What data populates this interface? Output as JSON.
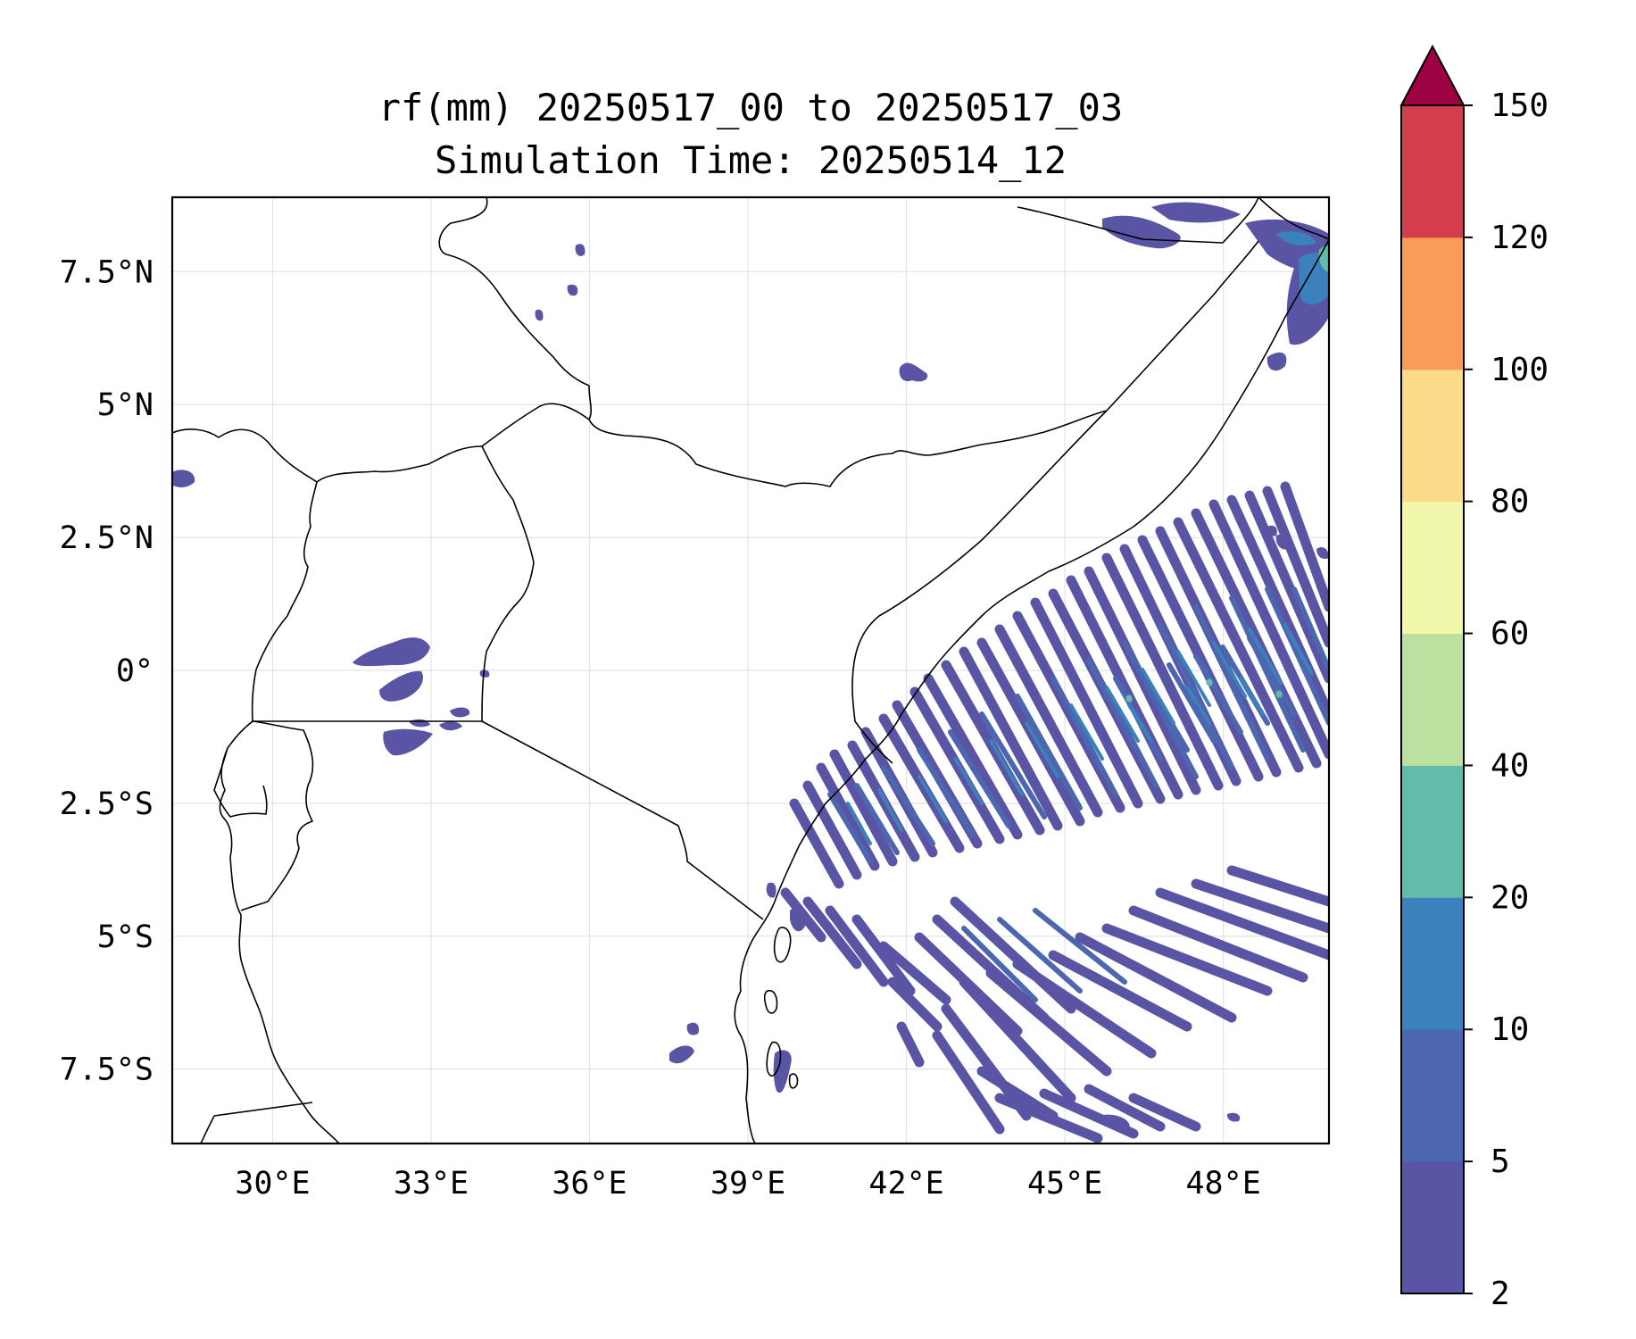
{
  "title": {
    "line1": "rf(mm) 20250517_00 to 20250517_03",
    "line2": "Simulation Time: 20250514_12"
  },
  "map": {
    "lon_ticks": [
      "30°E",
      "33°E",
      "36°E",
      "39°E",
      "42°E",
      "45°E",
      "48°E"
    ],
    "lat_ticks": [
      "7.5°N",
      "5°N",
      "2.5°N",
      "0°",
      "2.5°S",
      "5°S",
      "7.5°S"
    ],
    "extent": {
      "lon": [
        28.1,
        50.0
      ],
      "lat": [
        -8.9,
        8.9
      ]
    },
    "gridlines": true
  },
  "colorbar": {
    "levels": [
      "2",
      "5",
      "10",
      "20",
      "40",
      "60",
      "80",
      "100",
      "120",
      "150"
    ],
    "colors": [
      "#5954a4",
      "#4c66b0",
      "#3b81bb",
      "#63bca9",
      "#bbe09f",
      "#f1f7ab",
      "#fbdb89",
      "#f99c58",
      "#d43d4e"
    ],
    "extend_color": "#9e0142"
  }
}
